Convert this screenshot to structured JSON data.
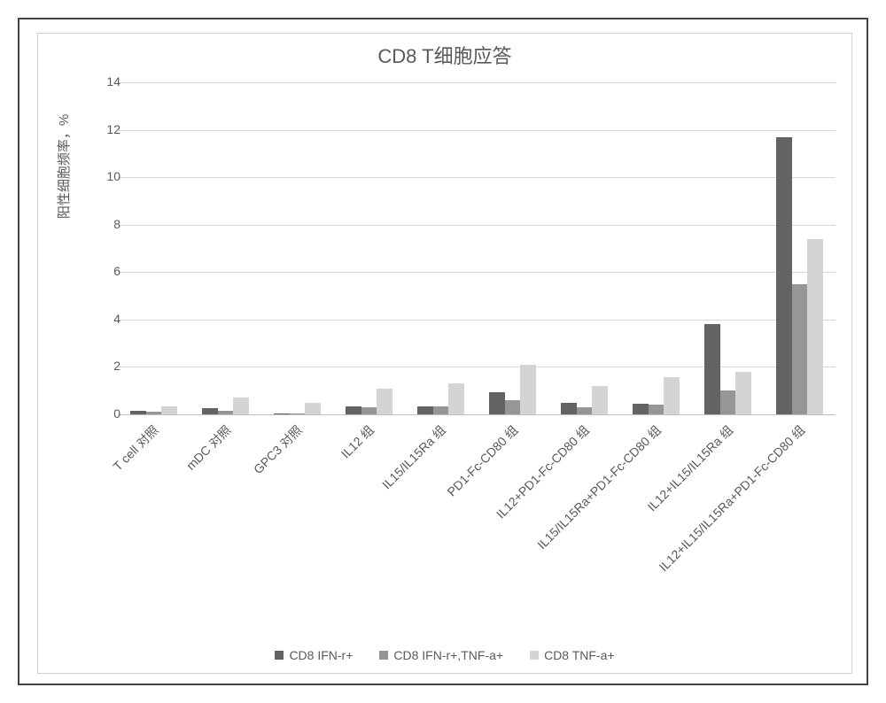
{
  "chart": {
    "type": "bar",
    "title": "CD8 T细胞应答",
    "title_fontsize": 22,
    "title_color": "#595959",
    "ylabel": "阳性细胞频率，%",
    "ylabel_fontsize": 15,
    "ylim": [
      0,
      14
    ],
    "ytick_step": 2,
    "tick_fontsize": 14,
    "xlabel_fontsize": 14,
    "background_color": "#ffffff",
    "grid_color": "#d9d9d9",
    "axis_color": "#bfbfbf",
    "categories": [
      "T cell 对照",
      "mDC 对照",
      "GPC3 对照",
      "IL12 组",
      "IL15/IL15Ra 组",
      "PD1-Fc-CD80 组",
      "IL12+PD1-Fc-CD80 组",
      "IL15/IL15Ra+PD1-Fc-CD80 组",
      "IL12+IL15/IL15Ra 组",
      "IL12+IL15/IL15Ra+PD1-Fc-CD80 组"
    ],
    "series": [
      {
        "name": "CD8 IFN-r+",
        "color": "#636363",
        "values": [
          0.15,
          0.25,
          0.05,
          0.35,
          0.35,
          0.95,
          0.5,
          0.45,
          3.8,
          11.7
        ]
      },
      {
        "name": "CD8 IFN-r+,TNF-a+",
        "color": "#969696",
        "values": [
          0.1,
          0.15,
          0.05,
          0.3,
          0.35,
          0.6,
          0.3,
          0.4,
          1.0,
          5.5
        ]
      },
      {
        "name": "CD8 TNF-a+",
        "color": "#d4d4d4",
        "values": [
          0.35,
          0.7,
          0.5,
          1.1,
          1.3,
          2.1,
          1.2,
          1.55,
          1.8,
          7.4
        ]
      }
    ],
    "bar_group_gap_ratio": 0.35,
    "legend_fontsize": 14
  }
}
